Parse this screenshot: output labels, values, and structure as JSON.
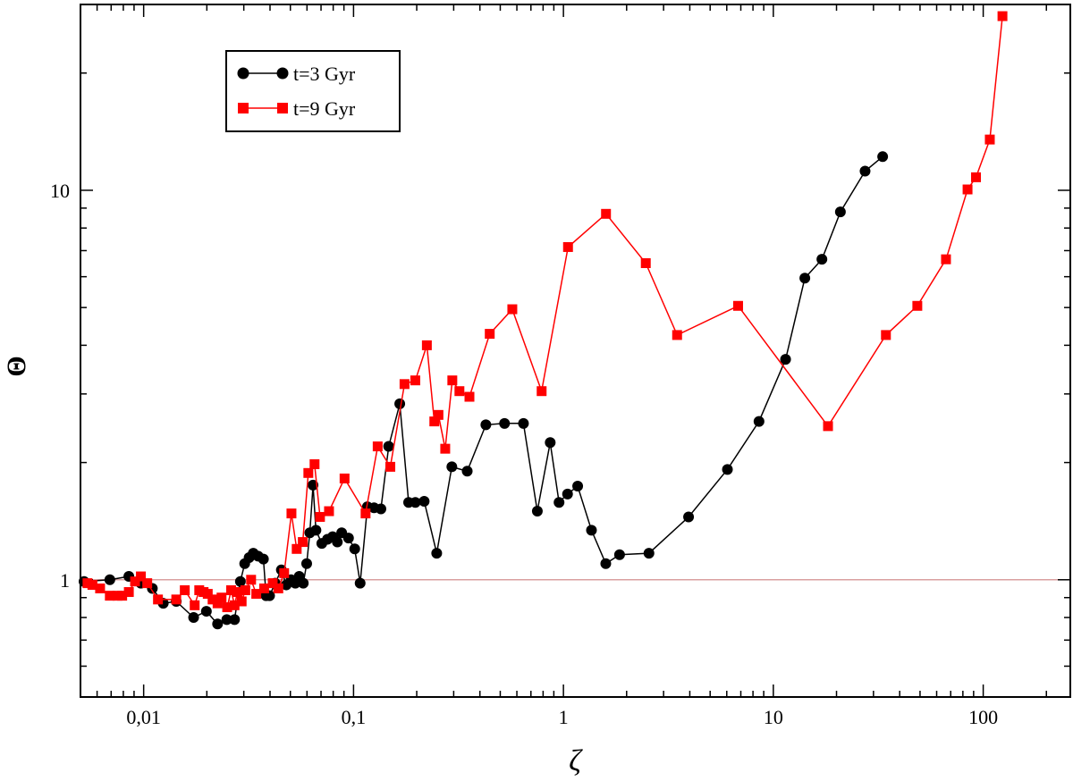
{
  "chart_data": {
    "type": "line",
    "title": "",
    "xlabel": "ζ",
    "ylabel": "Θ",
    "xscale": "log",
    "yscale": "log",
    "xlim": [
      0.005,
      260
    ],
    "ylim": [
      0.5,
      30
    ],
    "grid": false,
    "legend_position": "top-left",
    "x_tick_labels": [
      {
        "value": 0.01,
        "label": "0,01"
      },
      {
        "value": 0.1,
        "label": "0,1"
      },
      {
        "value": 1,
        "label": "1"
      },
      {
        "value": 10,
        "label": "10"
      },
      {
        "value": 100,
        "label": "100"
      }
    ],
    "y_tick_labels": [
      {
        "value": 1,
        "label": "1"
      },
      {
        "value": 10,
        "label": "10"
      }
    ],
    "reference_line": {
      "y": 1,
      "color": "#d9a0a0"
    },
    "series": [
      {
        "name": "t=3 Gyr",
        "color": "#000000",
        "marker": "circle",
        "points": [
          [
            0.0052,
            0.99
          ],
          [
            0.0069,
            1.0
          ],
          [
            0.0085,
            1.02
          ],
          [
            0.0097,
            0.98
          ],
          [
            0.011,
            0.95
          ],
          [
            0.0124,
            0.87
          ],
          [
            0.0143,
            0.88
          ],
          [
            0.0173,
            0.8
          ],
          [
            0.0199,
            0.83
          ],
          [
            0.0225,
            0.77
          ],
          [
            0.0249,
            0.79
          ],
          [
            0.0271,
            0.79
          ],
          [
            0.0289,
            0.99
          ],
          [
            0.0303,
            1.1
          ],
          [
            0.0318,
            1.14
          ],
          [
            0.0333,
            1.17
          ],
          [
            0.0351,
            1.15
          ],
          [
            0.0372,
            1.13
          ],
          [
            0.0383,
            0.91
          ],
          [
            0.0398,
            0.91
          ],
          [
            0.0423,
            0.98
          ],
          [
            0.0453,
            1.06
          ],
          [
            0.0478,
            0.97
          ],
          [
            0.0504,
            1.0
          ],
          [
            0.0528,
            0.98
          ],
          [
            0.0551,
            1.02
          ],
          [
            0.0576,
            0.98
          ],
          [
            0.0598,
            1.1
          ],
          [
            0.0619,
            1.32
          ],
          [
            0.0641,
            1.75
          ],
          [
            0.0662,
            1.34
          ],
          [
            0.0706,
            1.24
          ],
          [
            0.0751,
            1.27
          ],
          [
            0.0795,
            1.29
          ],
          [
            0.0837,
            1.25
          ],
          [
            0.0878,
            1.32
          ],
          [
            0.0946,
            1.28
          ],
          [
            0.1013,
            1.2
          ],
          [
            0.1075,
            0.98
          ],
          [
            0.1164,
            1.54
          ],
          [
            0.1252,
            1.53
          ],
          [
            0.135,
            1.52
          ],
          [
            0.147,
            2.2
          ],
          [
            0.166,
            2.83
          ],
          [
            0.183,
            1.58
          ],
          [
            0.197,
            1.58
          ],
          [
            0.217,
            1.59
          ],
          [
            0.249,
            1.17
          ],
          [
            0.294,
            1.95
          ],
          [
            0.348,
            1.9
          ],
          [
            0.427,
            2.5
          ],
          [
            0.524,
            2.52
          ],
          [
            0.645,
            2.52
          ],
          [
            0.751,
            1.5
          ],
          [
            0.865,
            2.25
          ],
          [
            0.953,
            1.58
          ],
          [
            1.046,
            1.66
          ],
          [
            1.169,
            1.74
          ],
          [
            1.36,
            1.34
          ],
          [
            1.591,
            1.1
          ],
          [
            1.851,
            1.16
          ],
          [
            2.555,
            1.17
          ],
          [
            3.946,
            1.45
          ],
          [
            6.044,
            1.92
          ],
          [
            8.545,
            2.55
          ],
          [
            11.44,
            3.68
          ],
          [
            14.13,
            5.95
          ],
          [
            17.04,
            6.65
          ],
          [
            20.87,
            8.8
          ],
          [
            27.36,
            11.2
          ],
          [
            33.18,
            12.2
          ]
        ]
      },
      {
        "name": "t=9 Gyr",
        "color": "#ff0000",
        "marker": "square",
        "points": [
          [
            0.0054,
            0.98
          ],
          [
            0.0057,
            0.97
          ],
          [
            0.0062,
            0.95
          ],
          [
            0.0069,
            0.91
          ],
          [
            0.0075,
            0.91
          ],
          [
            0.0079,
            0.91
          ],
          [
            0.0085,
            0.93
          ],
          [
            0.0091,
            0.99
          ],
          [
            0.0097,
            1.02
          ],
          [
            0.0104,
            0.98
          ],
          [
            0.0117,
            0.89
          ],
          [
            0.0143,
            0.89
          ],
          [
            0.0157,
            0.94
          ],
          [
            0.0175,
            0.86
          ],
          [
            0.0184,
            0.94
          ],
          [
            0.0193,
            0.93
          ],
          [
            0.0202,
            0.92
          ],
          [
            0.0213,
            0.89
          ],
          [
            0.0225,
            0.87
          ],
          [
            0.0235,
            0.9
          ],
          [
            0.025,
            0.85
          ],
          [
            0.0261,
            0.94
          ],
          [
            0.0271,
            0.86
          ],
          [
            0.028,
            0.93
          ],
          [
            0.0293,
            0.88
          ],
          [
            0.0305,
            0.94
          ],
          [
            0.0325,
            1.0
          ],
          [
            0.0344,
            0.92
          ],
          [
            0.0375,
            0.95
          ],
          [
            0.0412,
            0.98
          ],
          [
            0.0438,
            0.95
          ],
          [
            0.0467,
            1.04
          ],
          [
            0.0506,
            1.48
          ],
          [
            0.0536,
            1.2
          ],
          [
            0.0573,
            1.25
          ],
          [
            0.0609,
            1.88
          ],
          [
            0.0652,
            1.98
          ],
          [
            0.0692,
            1.45
          ],
          [
            0.0764,
            1.5
          ],
          [
            0.0906,
            1.82
          ],
          [
            0.1141,
            1.48
          ],
          [
            0.1303,
            2.2
          ],
          [
            0.1497,
            1.95
          ],
          [
            0.1749,
            3.18
          ],
          [
            0.1969,
            3.25
          ],
          [
            0.2235,
            4.0
          ],
          [
            0.2426,
            2.55
          ],
          [
            0.2538,
            2.65
          ],
          [
            0.2734,
            2.17
          ],
          [
            0.2955,
            3.25
          ],
          [
            0.3195,
            3.05
          ],
          [
            0.3566,
            2.95
          ],
          [
            0.4455,
            4.28
          ],
          [
            0.5707,
            4.95
          ],
          [
            0.7873,
            3.05
          ],
          [
            1.0516,
            7.15
          ],
          [
            1.595,
            8.7
          ],
          [
            2.468,
            6.5
          ],
          [
            3.48,
            4.25
          ],
          [
            6.795,
            5.05
          ],
          [
            18.22,
            2.48
          ],
          [
            34.39,
            4.25
          ],
          [
            48.53,
            5.05
          ],
          [
            66.47,
            6.65
          ],
          [
            84.21,
            10.05
          ],
          [
            92.37,
            10.8
          ],
          [
            107.5,
            13.5
          ],
          [
            123.5,
            28.0
          ]
        ]
      }
    ]
  }
}
